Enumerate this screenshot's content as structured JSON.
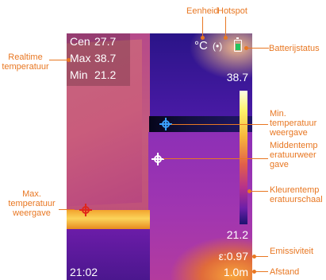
{
  "screen": {
    "readout": [
      {
        "key": "Cen",
        "value": "27.7"
      },
      {
        "key": "Max",
        "value": "38.7"
      },
      {
        "key": "Min",
        "value": "21.2"
      }
    ],
    "unit": "°C",
    "hotspot_icon": "hotspot-icon",
    "battery_icon": "battery-icon",
    "scale_max": "38.7",
    "scale_min": "21.2",
    "emissivity": "ε:0.97",
    "distance": "1.0m",
    "time": "21:02"
  },
  "callouts": {
    "eenheid": "Eenheid",
    "hotspot": "Hotspot",
    "batterij": "Batterijstatus",
    "realtime": "Realtime\ntemperatuur",
    "min": "Min.\ntemperatuur\nweergave",
    "midden": "Middentemp\neratuurweer\ngave",
    "max": "Max.\ntemperatuur\nweergave",
    "kleur": "Kleurentemp\neratuurschaal",
    "emissiviteit": "Emissiviteit",
    "afstand": "Afstand"
  },
  "colors": {
    "callout": "#e87722",
    "min_marker": "#3aa0ff",
    "max_marker": "#e0261b",
    "center_marker": "#ffffff",
    "battery": "#22c55e"
  }
}
